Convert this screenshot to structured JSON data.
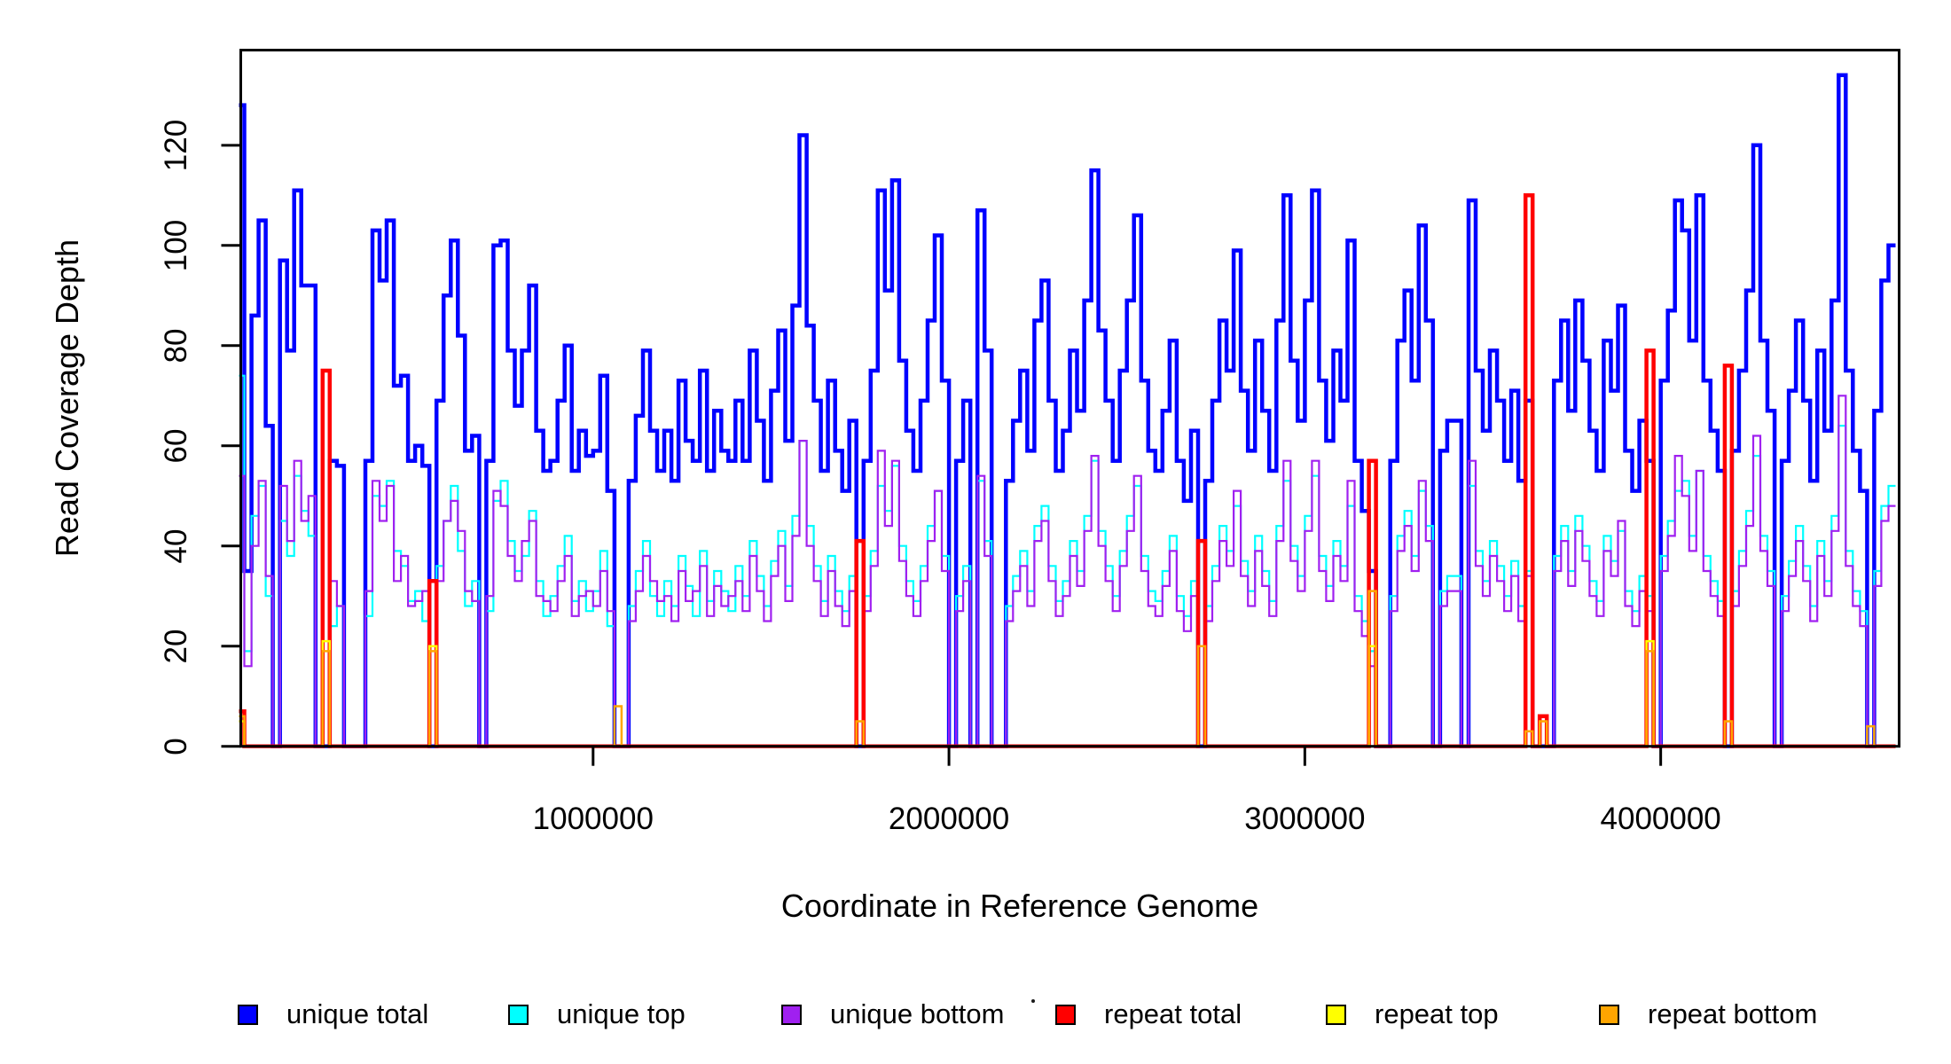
{
  "chart_data": {
    "type": "step-line",
    "title": "",
    "xlabel": "Coordinate in Reference Genome",
    "ylabel": "Read Coverage Depth",
    "grid": false,
    "legend_position": "bottom",
    "background": "#FFFFFF",
    "axis_color": "#000000",
    "xlim": [
      0,
      4660000
    ],
    "ylim": [
      0,
      139
    ],
    "x_ticks": [
      1000000,
      2000000,
      3000000,
      4000000
    ],
    "x_tick_labels": [
      "1000000",
      "2000000",
      "3000000",
      "4000000"
    ],
    "y_ticks": [
      0,
      20,
      40,
      60,
      80,
      100,
      120
    ],
    "y_tick_labels": [
      "0",
      "20",
      "40",
      "60",
      "80",
      "100",
      "120"
    ],
    "bin_size": 20000,
    "n_bins": 233,
    "series": [
      {
        "name": "unique total",
        "color": "#0000FF",
        "lwd": 4.5,
        "values": [
          128,
          35,
          86,
          105,
          64,
          0,
          97,
          79,
          111,
          92,
          92,
          0,
          0,
          57,
          56,
          0,
          0,
          0,
          57,
          103,
          93,
          105,
          72,
          74,
          57,
          60,
          56,
          0,
          69,
          90,
          101,
          82,
          59,
          62,
          0,
          57,
          100,
          101,
          79,
          68,
          79,
          92,
          63,
          55,
          57,
          69,
          80,
          55,
          63,
          58,
          59,
          74,
          51,
          0,
          0,
          53,
          66,
          79,
          63,
          55,
          63,
          53,
          73,
          61,
          57,
          75,
          55,
          67,
          59,
          57,
          69,
          57,
          79,
          65,
          53,
          71,
          83,
          61,
          88,
          122,
          84,
          69,
          55,
          73,
          59,
          51,
          65,
          0,
          57,
          75,
          111,
          91,
          113,
          77,
          63,
          55,
          69,
          85,
          102,
          73,
          0,
          57,
          69,
          0,
          107,
          79,
          0,
          0,
          53,
          65,
          75,
          59,
          85,
          93,
          69,
          55,
          63,
          79,
          67,
          89,
          115,
          83,
          69,
          57,
          75,
          89,
          106,
          73,
          59,
          55,
          67,
          81,
          57,
          49,
          63,
          0,
          53,
          69,
          85,
          75,
          99,
          71,
          59,
          81,
          67,
          55,
          85,
          110,
          77,
          65,
          89,
          111,
          73,
          61,
          79,
          69,
          101,
          57,
          47,
          35,
          0,
          0,
          57,
          81,
          91,
          73,
          104,
          85,
          0,
          59,
          65,
          65,
          0,
          109,
          75,
          63,
          79,
          69,
          57,
          71,
          53,
          69,
          0,
          0,
          0,
          73,
          85,
          67,
          89,
          77,
          63,
          55,
          81,
          71,
          88,
          59,
          51,
          65,
          57,
          0,
          73,
          87,
          109,
          103,
          81,
          110,
          73,
          63,
          55,
          0,
          59,
          75,
          91,
          120,
          81,
          67,
          0,
          57,
          71,
          85,
          69,
          53,
          79,
          63,
          89,
          134,
          75,
          59,
          51,
          0,
          67,
          93,
          100
        ]
      },
      {
        "name": "unique top",
        "color": "#00FFFF",
        "lwd": 2.2,
        "values": [
          74,
          19,
          46,
          52,
          30,
          0,
          45,
          38,
          54,
          47,
          42,
          0,
          0,
          24,
          28,
          0,
          0,
          0,
          26,
          50,
          48,
          53,
          39,
          36,
          29,
          31,
          25,
          0,
          36,
          45,
          52,
          39,
          28,
          33,
          0,
          27,
          49,
          53,
          41,
          35,
          38,
          47,
          33,
          26,
          30,
          36,
          42,
          29,
          33,
          27,
          31,
          39,
          24,
          0,
          0,
          28,
          35,
          41,
          30,
          26,
          33,
          28,
          38,
          32,
          26,
          39,
          29,
          35,
          31,
          27,
          36,
          30,
          41,
          34,
          28,
          37,
          43,
          32,
          46,
          61,
          44,
          36,
          29,
          38,
          31,
          27,
          34,
          0,
          30,
          39,
          52,
          47,
          56,
          40,
          33,
          29,
          36,
          44,
          51,
          38,
          0,
          30,
          36,
          0,
          53,
          41,
          0,
          0,
          28,
          34,
          39,
          31,
          44,
          48,
          36,
          29,
          33,
          41,
          35,
          46,
          57,
          43,
          36,
          30,
          39,
          46,
          52,
          38,
          31,
          29,
          35,
          42,
          30,
          26,
          33,
          0,
          28,
          36,
          44,
          39,
          48,
          37,
          31,
          42,
          35,
          29,
          44,
          53,
          40,
          34,
          46,
          54,
          38,
          32,
          41,
          36,
          48,
          30,
          25,
          19,
          0,
          0,
          30,
          42,
          47,
          38,
          51,
          44,
          0,
          31,
          34,
          34,
          0,
          52,
          39,
          33,
          41,
          36,
          30,
          37,
          28,
          35,
          0,
          0,
          0,
          38,
          44,
          35,
          46,
          40,
          33,
          29,
          42,
          37,
          43,
          31,
          27,
          34,
          30,
          0,
          38,
          45,
          51,
          53,
          42,
          55,
          38,
          33,
          29,
          0,
          31,
          39,
          47,
          58,
          42,
          35,
          0,
          30,
          37,
          44,
          36,
          28,
          41,
          33,
          46,
          64,
          39,
          31,
          27,
          0,
          35,
          48,
          52
        ]
      },
      {
        "name": "unique bottom",
        "color": "#A020F0",
        "lwd": 2.2,
        "values": [
          54,
          16,
          40,
          53,
          34,
          0,
          52,
          41,
          57,
          45,
          50,
          0,
          0,
          33,
          28,
          0,
          0,
          0,
          31,
          53,
          45,
          52,
          33,
          38,
          28,
          29,
          31,
          0,
          33,
          45,
          49,
          43,
          31,
          29,
          0,
          30,
          51,
          48,
          38,
          33,
          41,
          45,
          30,
          29,
          27,
          33,
          38,
          26,
          30,
          31,
          28,
          35,
          27,
          0,
          0,
          25,
          31,
          38,
          33,
          29,
          30,
          25,
          35,
          29,
          31,
          36,
          26,
          32,
          28,
          30,
          33,
          27,
          38,
          31,
          25,
          34,
          40,
          29,
          42,
          61,
          40,
          33,
          26,
          35,
          28,
          24,
          31,
          0,
          27,
          36,
          59,
          44,
          57,
          37,
          30,
          26,
          33,
          41,
          51,
          35,
          0,
          27,
          33,
          0,
          54,
          38,
          0,
          0,
          25,
          31,
          36,
          28,
          41,
          45,
          33,
          26,
          30,
          38,
          32,
          43,
          58,
          40,
          33,
          27,
          36,
          43,
          54,
          35,
          28,
          26,
          32,
          39,
          27,
          23,
          30,
          0,
          25,
          33,
          41,
          36,
          51,
          34,
          28,
          39,
          32,
          26,
          41,
          57,
          37,
          31,
          43,
          57,
          35,
          29,
          38,
          33,
          53,
          27,
          22,
          16,
          0,
          0,
          27,
          39,
          44,
          35,
          53,
          41,
          0,
          28,
          31,
          31,
          0,
          57,
          36,
          30,
          38,
          33,
          27,
          34,
          25,
          34,
          0,
          0,
          0,
          35,
          41,
          32,
          43,
          37,
          30,
          26,
          39,
          34,
          45,
          28,
          24,
          31,
          27,
          0,
          35,
          42,
          58,
          50,
          39,
          55,
          35,
          30,
          26,
          0,
          28,
          36,
          44,
          62,
          39,
          32,
          0,
          27,
          34,
          41,
          33,
          25,
          38,
          30,
          43,
          70,
          36,
          28,
          24,
          0,
          32,
          45,
          48
        ]
      },
      {
        "name": "repeat total",
        "color": "#FF0000",
        "lwd": 4.5,
        "sparse": {
          "0": 7,
          "12": 75,
          "27": 33,
          "87": 41,
          "135": 41,
          "159": 57,
          "181": 110,
          "183": 6,
          "198": 79,
          "209": 76
        }
      },
      {
        "name": "repeat top",
        "color": "#FFFF00",
        "lwd": 2.5,
        "sparse": {
          "0": 5,
          "12": 21,
          "27": 20,
          "159": 20,
          "198": 21
        }
      },
      {
        "name": "repeat bottom",
        "color": "#FFA500",
        "lwd": 2.5,
        "sparse": {
          "0": 6,
          "12": 19,
          "27": 19,
          "53": 8,
          "87": 5,
          "135": 20,
          "159": 31,
          "181": 3,
          "183": 5,
          "198": 19,
          "209": 5,
          "229": 4
        }
      }
    ]
  }
}
